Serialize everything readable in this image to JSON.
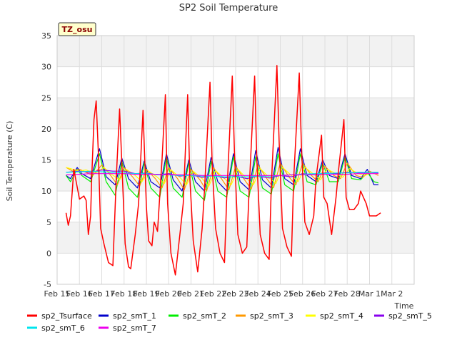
{
  "chart_data": {
    "type": "line",
    "title": "SP2 Soil Temperature",
    "xlabel": "Time",
    "ylabel": "Soil Temperature (C)",
    "annotation": "TZ_osu",
    "xlim": [
      15,
      31
    ],
    "ylim": [
      -5,
      35
    ],
    "y_ticks": [
      -5,
      0,
      5,
      10,
      15,
      20,
      25,
      30,
      35
    ],
    "x_ticks": [
      {
        "x": 15,
        "label": "Feb 15"
      },
      {
        "x": 16,
        "label": "Feb 16"
      },
      {
        "x": 17,
        "label": "Feb 17"
      },
      {
        "x": 18,
        "label": "Feb 18"
      },
      {
        "x": 19,
        "label": "Feb 19"
      },
      {
        "x": 20,
        "label": "Feb 20"
      },
      {
        "x": 21,
        "label": "Feb 21"
      },
      {
        "x": 22,
        "label": "Feb 22"
      },
      {
        "x": 23,
        "label": "Feb 23"
      },
      {
        "x": 24,
        "label": "Feb 24"
      },
      {
        "x": 25,
        "label": "Feb 25"
      },
      {
        "x": 26,
        "label": "Feb 26"
      },
      {
        "x": 27,
        "label": "Feb 27"
      },
      {
        "x": 28,
        "label": "Feb 28"
      },
      {
        "x": 29,
        "label": "Mar 1"
      },
      {
        "x": 30,
        "label": "Mar 2"
      }
    ],
    "grid": true,
    "legend_position": "bottom",
    "series": [
      {
        "name": "sp2_Tsurface",
        "color": "#ff0000",
        "width": 1.5,
        "x": [
          15.4,
          15.5,
          15.6,
          15.75,
          16.0,
          16.2,
          16.3,
          16.4,
          16.5,
          16.55,
          16.65,
          16.75,
          16.85,
          16.95,
          17.1,
          17.3,
          17.5,
          17.65,
          17.8,
          17.95,
          18.05,
          18.2,
          18.3,
          18.5,
          18.65,
          18.85,
          19.0,
          19.1,
          19.25,
          19.35,
          19.5,
          19.7,
          19.85,
          19.95,
          20.1,
          20.3,
          20.5,
          20.65,
          20.85,
          20.95,
          21.1,
          21.3,
          21.5,
          21.6,
          21.85,
          21.95,
          22.1,
          22.3,
          22.5,
          22.6,
          22.85,
          22.95,
          23.1,
          23.3,
          23.5,
          23.6,
          23.85,
          23.95,
          24.1,
          24.3,
          24.5,
          24.6,
          24.85,
          24.95,
          25.1,
          25.3,
          25.5,
          25.6,
          25.85,
          25.95,
          26.1,
          26.3,
          26.5,
          26.6,
          26.85,
          26.95,
          27.1,
          27.3,
          27.5,
          27.6,
          27.85,
          27.95,
          28.1,
          28.3,
          28.5,
          28.6,
          28.85,
          29.0,
          29.3,
          29.5
        ],
        "y": [
          6.5,
          4.5,
          6.0,
          13.5,
          8.7,
          9.2,
          8.5,
          3.0,
          6.0,
          12.0,
          21.5,
          24.5,
          16.0,
          4.0,
          1.5,
          -1.5,
          -2.0,
          12.0,
          23.2,
          10.0,
          1.5,
          -2.2,
          -2.5,
          3.0,
          8.0,
          23.0,
          7.5,
          2.0,
          1.2,
          5.0,
          3.5,
          15.0,
          25.5,
          8.0,
          0.0,
          -3.5,
          3.0,
          8.0,
          25.5,
          12.0,
          2.0,
          -3.0,
          4.0,
          10.0,
          27.5,
          14.0,
          4.0,
          0.0,
          -1.5,
          9.0,
          28.5,
          16.0,
          3.0,
          0.0,
          1.0,
          10.0,
          28.5,
          15.0,
          3.0,
          0.0,
          -1.0,
          11.0,
          30.2,
          18.0,
          4.0,
          1.0,
          -0.5,
          12.0,
          29.0,
          17.0,
          5.0,
          3.0,
          6.0,
          12.0,
          19.0,
          9.0,
          8.0,
          3.0,
          9.0,
          13.0,
          21.5,
          9.0,
          7.0,
          7.0,
          8.0,
          10.0,
          8.0,
          6.0,
          6.0,
          6.5
        ]
      },
      {
        "name": "sp2_smT_1",
        "color": "#0000cc",
        "width": 1.2,
        "x": [
          15.4,
          15.6,
          15.9,
          16.1,
          16.5,
          16.9,
          17.2,
          17.6,
          17.9,
          18.2,
          18.6,
          18.9,
          19.2,
          19.6,
          19.9,
          20.2,
          20.6,
          20.9,
          21.2,
          21.6,
          21.9,
          22.2,
          22.6,
          22.9,
          23.2,
          23.6,
          23.9,
          24.2,
          24.6,
          24.9,
          25.2,
          25.6,
          25.9,
          26.2,
          26.6,
          26.9,
          27.2,
          27.6,
          27.9,
          28.2,
          28.6,
          28.9,
          29.2,
          29.4
        ],
        "y": [
          12.5,
          12.0,
          13.8,
          12.8,
          12.0,
          16.8,
          12.3,
          11.0,
          15.3,
          12.0,
          10.5,
          14.8,
          11.5,
          10.5,
          16.0,
          11.8,
          10.0,
          15.0,
          11.5,
          10.0,
          15.4,
          11.5,
          10.0,
          16.0,
          11.5,
          10.2,
          16.5,
          11.8,
          10.5,
          17.0,
          12.0,
          11.0,
          16.8,
          12.5,
          11.5,
          15.0,
          12.5,
          12.0,
          16.0,
          12.5,
          12.0,
          13.5,
          11.0,
          11.0
        ]
      },
      {
        "name": "sp2_smT_2",
        "color": "#00ee00",
        "width": 1.2,
        "x": [
          15.4,
          15.6,
          15.9,
          16.1,
          16.5,
          16.9,
          17.2,
          17.6,
          17.9,
          18.2,
          18.6,
          18.9,
          19.2,
          19.6,
          19.9,
          20.2,
          20.6,
          20.9,
          21.2,
          21.6,
          21.9,
          22.2,
          22.6,
          22.9,
          23.2,
          23.6,
          23.9,
          24.2,
          24.6,
          24.9,
          25.2,
          25.6,
          25.9,
          26.2,
          26.6,
          26.9,
          27.2,
          27.6,
          27.9,
          28.2,
          28.6,
          28.9,
          29.2,
          29.4
        ],
        "y": [
          12.5,
          11.5,
          13.5,
          12.5,
          11.5,
          16.0,
          11.5,
          9.3,
          14.8,
          10.5,
          9.0,
          14.5,
          10.5,
          9.0,
          15.5,
          10.5,
          9.0,
          14.5,
          10.0,
          8.5,
          14.8,
          10.0,
          9.0,
          15.5,
          10.0,
          9.0,
          15.5,
          10.5,
          9.5,
          16.0,
          11.0,
          10.0,
          16.0,
          11.5,
          11.0,
          14.5,
          11.5,
          11.5,
          15.5,
          12.0,
          11.8,
          13.0,
          11.5,
          11.3
        ]
      },
      {
        "name": "sp2_smT_3",
        "color": "#ff9900",
        "width": 1.2,
        "x": [
          15.4,
          15.7,
          16.0,
          16.3,
          16.6,
          17.0,
          17.4,
          17.7,
          18.0,
          18.4,
          18.7,
          19.0,
          19.4,
          19.7,
          20.0,
          20.4,
          20.7,
          21.0,
          21.4,
          21.7,
          22.0,
          22.4,
          22.7,
          23.0,
          23.4,
          23.7,
          24.0,
          24.4,
          24.7,
          25.0,
          25.4,
          25.7,
          26.0,
          26.4,
          26.7,
          27.0,
          27.4,
          27.7,
          28.0,
          28.4,
          28.7,
          29.0,
          29.4
        ],
        "y": [
          13.8,
          13.2,
          13.5,
          13.0,
          12.5,
          14.2,
          12.5,
          11.0,
          13.8,
          12.2,
          10.8,
          13.5,
          12.0,
          10.5,
          13.8,
          12.0,
          10.2,
          13.5,
          11.8,
          10.0,
          13.8,
          11.8,
          10.2,
          14.0,
          11.8,
          10.3,
          14.2,
          12.0,
          10.5,
          14.5,
          12.2,
          11.0,
          14.5,
          12.5,
          11.5,
          14.0,
          12.5,
          12.0,
          14.5,
          12.5,
          12.2,
          13.2,
          12.5
        ]
      },
      {
        "name": "sp2_smT_4",
        "color": "#ffff00",
        "width": 1.2,
        "x": [
          15.4,
          15.7,
          16.0,
          16.3,
          16.7,
          17.1,
          17.4,
          17.8,
          18.1,
          18.5,
          18.8,
          19.1,
          19.5,
          19.8,
          20.1,
          20.5,
          20.8,
          21.1,
          21.5,
          21.8,
          22.1,
          22.5,
          22.8,
          23.1,
          23.5,
          23.8,
          24.1,
          24.5,
          24.8,
          25.1,
          25.5,
          25.8,
          26.1,
          26.5,
          26.8,
          27.1,
          27.5,
          27.8,
          28.1,
          28.5,
          28.8,
          29.1,
          29.4
        ],
        "y": [
          13.8,
          13.5,
          13.2,
          13.4,
          12.8,
          13.8,
          12.8,
          11.8,
          13.5,
          12.5,
          11.5,
          13.2,
          12.2,
          11.2,
          13.4,
          12.2,
          11.0,
          13.2,
          12.0,
          10.8,
          13.3,
          12.0,
          11.0,
          13.5,
          12.0,
          11.0,
          13.6,
          12.2,
          11.2,
          13.8,
          12.5,
          11.5,
          13.8,
          12.7,
          11.8,
          13.5,
          12.8,
          12.2,
          13.6,
          12.8,
          12.5,
          13.0,
          12.8
        ]
      },
      {
        "name": "sp2_smT_5",
        "color": "#8800ee",
        "width": 1.2,
        "x": [
          15.4,
          16.0,
          16.5,
          17.0,
          17.5,
          18.0,
          18.5,
          19.0,
          19.5,
          20.0,
          20.5,
          21.0,
          21.5,
          22.0,
          22.5,
          23.0,
          23.5,
          24.0,
          24.5,
          25.0,
          25.5,
          26.0,
          26.5,
          27.0,
          27.5,
          28.0,
          28.5,
          29.0,
          29.4
        ],
        "y": [
          13.0,
          13.2,
          13.0,
          13.4,
          13.2,
          13.2,
          12.8,
          12.9,
          12.6,
          12.8,
          12.4,
          12.6,
          12.2,
          12.5,
          12.1,
          12.4,
          12.0,
          12.4,
          12.1,
          12.5,
          12.3,
          12.8,
          12.6,
          12.9,
          12.8,
          13.0,
          12.9,
          13.0,
          12.9
        ]
      },
      {
        "name": "sp2_smT_6",
        "color": "#00e5ee",
        "width": 1.2,
        "x": [
          15.4,
          16.0,
          16.5,
          17.0,
          17.5,
          18.0,
          18.5,
          19.0,
          19.5,
          20.0,
          20.5,
          21.0,
          21.5,
          22.0,
          22.5,
          23.0,
          23.5,
          24.0,
          24.5,
          25.0,
          25.5,
          26.0,
          26.5,
          27.0,
          27.5,
          28.0,
          28.5,
          29.0,
          29.4
        ],
        "y": [
          13.0,
          13.1,
          13.2,
          13.1,
          13.0,
          12.9,
          12.8,
          12.8,
          12.6,
          12.6,
          12.5,
          12.5,
          12.4,
          12.4,
          12.3,
          12.3,
          12.3,
          12.4,
          12.4,
          12.5,
          12.6,
          12.7,
          12.8,
          12.8,
          12.9,
          12.9,
          13.0,
          13.0,
          13.0
        ]
      },
      {
        "name": "sp2_smT_7",
        "color": "#ee00ee",
        "width": 1.2,
        "x": [
          15.4,
          16.0,
          16.5,
          17.0,
          17.5,
          18.0,
          18.5,
          19.0,
          19.5,
          20.0,
          20.5,
          21.0,
          21.5,
          22.0,
          22.5,
          23.0,
          23.5,
          24.0,
          24.5,
          25.0,
          25.5,
          26.0,
          26.5,
          27.0,
          27.5,
          28.0,
          28.5,
          29.0,
          29.4
        ],
        "y": [
          12.6,
          12.7,
          12.8,
          12.8,
          12.8,
          12.8,
          12.7,
          12.7,
          12.7,
          12.6,
          12.6,
          12.6,
          12.5,
          12.5,
          12.5,
          12.5,
          12.5,
          12.5,
          12.5,
          12.5,
          12.6,
          12.6,
          12.6,
          12.7,
          12.7,
          12.7,
          12.8,
          12.8,
          12.8
        ]
      }
    ]
  }
}
